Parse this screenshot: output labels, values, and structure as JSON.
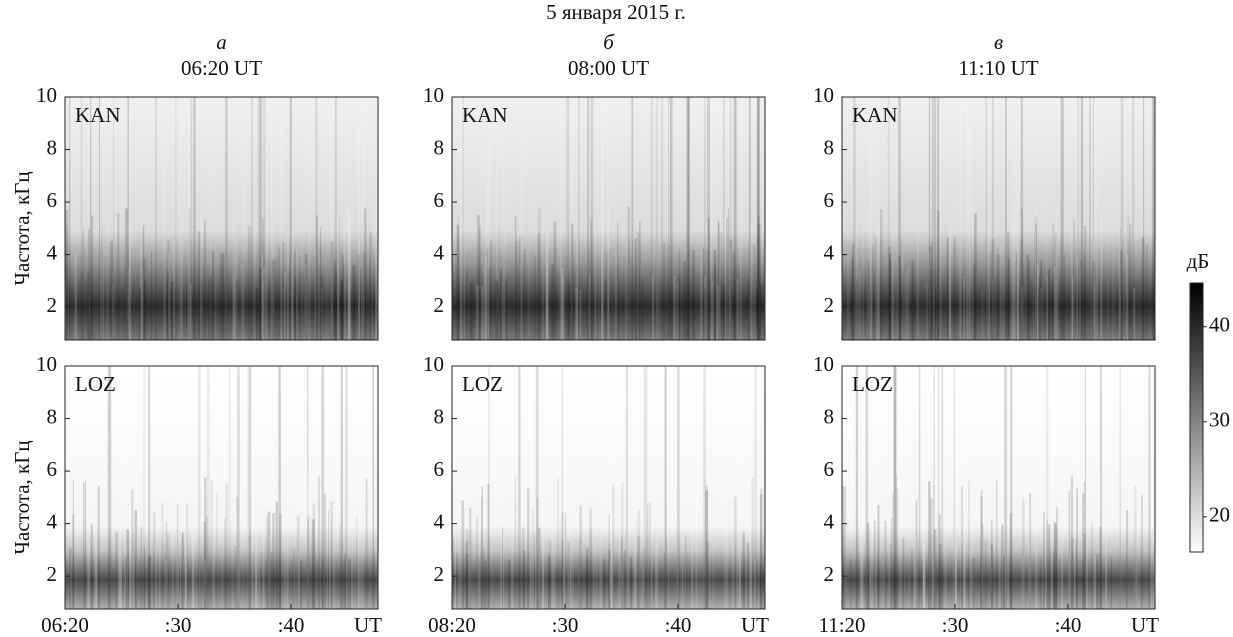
{
  "title": "5 января 2015 г.",
  "colorbar": {
    "label": "дБ",
    "lim": [
      16.3,
      44.6
    ],
    "ticks": [
      20,
      30,
      40
    ]
  },
  "chart_data": [
    {
      "type": "spectrogram",
      "panel_label": "а",
      "title": "06:20 UT",
      "station": "KAN",
      "ylabel": "Частота, кГц",
      "xlim": [
        20,
        47.7
      ],
      "ylim": [
        0.75,
        10
      ],
      "yticks": [
        2,
        4,
        6,
        8,
        10
      ]
    },
    {
      "type": "spectrogram",
      "panel_label": "б",
      "title": "08:00 UT",
      "station": "KAN",
      "xlim": [
        20,
        47.7
      ],
      "ylim": [
        0.75,
        10
      ],
      "yticks": [
        2,
        4,
        6,
        8,
        10
      ]
    },
    {
      "type": "spectrogram",
      "panel_label": "в",
      "title": "11:10 UT",
      "station": "KAN",
      "xlim": [
        20,
        47.7
      ],
      "ylim": [
        0.75,
        10
      ],
      "yticks": [
        2,
        4,
        6,
        8,
        10
      ]
    },
    {
      "type": "spectrogram",
      "station": "LOZ",
      "ylabel": "Частота, кГц",
      "xlabel": "UT",
      "xlim": [
        20,
        47.7
      ],
      "ylim": [
        0.75,
        10
      ],
      "yticks": [
        2,
        4,
        6,
        8,
        10
      ],
      "xticks": [
        {
          "value": 20,
          "label": "06:20"
        },
        {
          "value": 30,
          "label": ":30"
        },
        {
          "value": 40,
          "label": ":40"
        }
      ]
    },
    {
      "type": "spectrogram",
      "station": "LOZ",
      "xlabel": "UT",
      "xlim": [
        20,
        47.7
      ],
      "ylim": [
        0.75,
        10
      ],
      "yticks": [
        2,
        4,
        6,
        8,
        10
      ],
      "xticks": [
        {
          "value": 20,
          "label": "08:20"
        },
        {
          "value": 30,
          "label": ":30"
        },
        {
          "value": 40,
          "label": ":40"
        }
      ]
    },
    {
      "type": "spectrogram",
      "station": "LOZ",
      "xlabel": "UT",
      "xlim": [
        20,
        47.7
      ],
      "ylim": [
        0.75,
        10
      ],
      "yticks": [
        2,
        4,
        6,
        8,
        10
      ],
      "xticks": [
        {
          "value": 20,
          "label": "11:20"
        },
        {
          "value": 30,
          "label": ":30"
        },
        {
          "value": 40,
          "label": ":40"
        }
      ]
    }
  ]
}
